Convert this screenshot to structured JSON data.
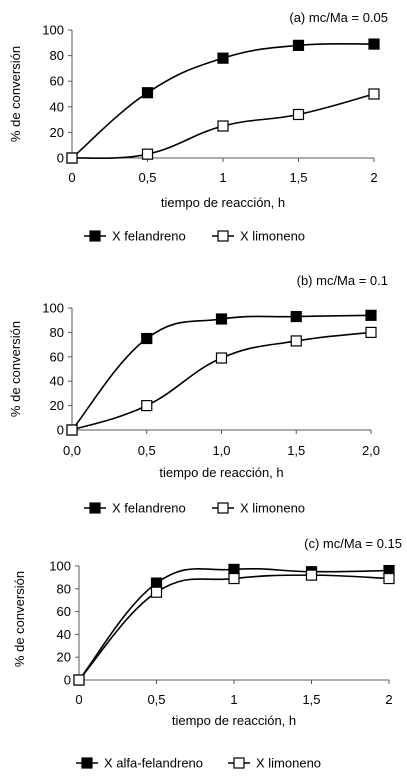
{
  "chart_data": [
    {
      "type": "line",
      "title": "(a) mc/Ma = 0.05",
      "xlabel": "tiempo de reacción, h",
      "ylabel": "% de conversión",
      "x": [
        0,
        0.5,
        1,
        1.5,
        2
      ],
      "xticks": [
        "0",
        "0,5",
        "1",
        "1,5",
        "2"
      ],
      "xlim": [
        0,
        2
      ],
      "ylim": [
        0,
        100
      ],
      "yticks": [
        "0",
        "20",
        "40",
        "60",
        "80",
        "100"
      ],
      "grid": false,
      "legend_position": "bottom",
      "series": [
        {
          "name": "X felandreno",
          "values": [
            0,
            51,
            78,
            88,
            89
          ],
          "marker": "filled-square"
        },
        {
          "name": "X limoneno",
          "values": [
            0,
            3,
            25,
            34,
            50
          ],
          "marker": "open-square"
        }
      ]
    },
    {
      "type": "line",
      "title": "(b) mc/Ma = 0.1",
      "xlabel": "tiempo de reacción, h",
      "ylabel": "% de conversión",
      "x": [
        0,
        0.5,
        1,
        1.5,
        2
      ],
      "xticks": [
        "0,0",
        "0,5",
        "1,0",
        "1,5",
        "2,0"
      ],
      "xlim": [
        0,
        2
      ],
      "ylim": [
        0,
        100
      ],
      "yticks": [
        "0",
        "20",
        "40",
        "60",
        "80",
        "100"
      ],
      "grid": false,
      "legend_position": "bottom",
      "series": [
        {
          "name": "X felandreno",
          "values": [
            0,
            75,
            91,
            93,
            94
          ],
          "marker": "filled-square"
        },
        {
          "name": "X limoneno",
          "values": [
            0,
            20,
            59,
            73,
            80
          ],
          "marker": "open-square"
        }
      ]
    },
    {
      "type": "line",
      "title": "(c) mc/Ma = 0.15",
      "xlabel": "tiempo de reacción, h",
      "ylabel": "% de conversión",
      "x": [
        0,
        0.5,
        1,
        1.5,
        2
      ],
      "xticks": [
        "0",
        "0,5",
        "1",
        "1,5",
        "2"
      ],
      "xlim": [
        0,
        2
      ],
      "ylim": [
        0,
        100
      ],
      "yticks": [
        "0",
        "20",
        "40",
        "60",
        "80",
        "100"
      ],
      "grid": false,
      "legend_position": "bottom",
      "series": [
        {
          "name": "X alfa-felandreno",
          "values": [
            0,
            85,
            97,
            95,
            96
          ],
          "marker": "filled-square"
        },
        {
          "name": "X limoneno",
          "values": [
            0,
            77,
            89,
            92,
            89
          ],
          "marker": "open-square"
        }
      ]
    }
  ]
}
